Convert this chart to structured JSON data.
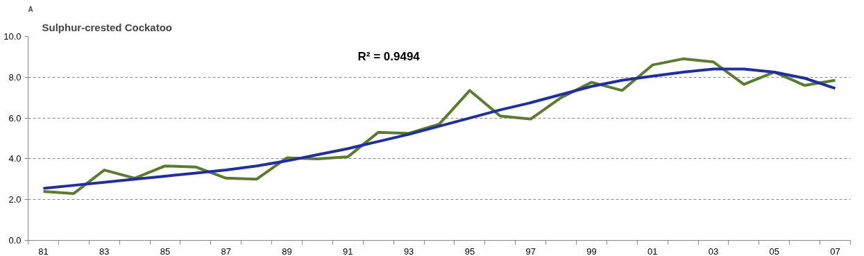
{
  "chart_data": {
    "type": "line",
    "title": "Sulphur-crested Cockatoo",
    "annotations": [
      "A",
      "R² = 0.9494"
    ],
    "categories": [
      "81",
      null,
      "83",
      null,
      "85",
      null,
      "87",
      null,
      "89",
      null,
      "91",
      null,
      "93",
      null,
      "95",
      null,
      "97",
      null,
      "99",
      null,
      "01",
      null,
      "03",
      null,
      "05",
      null,
      "07"
    ],
    "series": [
      {
        "color": "#5b7b2f",
        "values": [
          2.4,
          2.3,
          3.45,
          3.05,
          3.65,
          3.6,
          3.05,
          3.0,
          4.05,
          4.0,
          4.1,
          5.3,
          5.25,
          5.7,
          7.35,
          6.1,
          5.95,
          7.0,
          7.75,
          7.35,
          8.6,
          8.9,
          8.75,
          7.65,
          8.25,
          7.6,
          7.85
        ]
      },
      {
        "color": "#1f2ea0",
        "values": [
          2.55,
          2.7,
          2.85,
          3.0,
          3.15,
          3.3,
          3.45,
          3.65,
          3.9,
          4.2,
          4.5,
          4.85,
          5.2,
          5.6,
          6.0,
          6.4,
          6.75,
          7.15,
          7.55,
          7.85,
          8.05,
          8.25,
          8.4,
          8.4,
          8.25,
          7.95,
          7.45
        ]
      }
    ],
    "ylim": [
      0,
      10
    ],
    "yticks": [
      {
        "value": 0,
        "label": "0.0"
      },
      {
        "value": 2,
        "label": "2.0"
      },
      {
        "value": 4,
        "label": "4.0"
      },
      {
        "value": 6,
        "label": "6.0"
      },
      {
        "value": 8,
        "label": "8.0"
      },
      {
        "value": 10,
        "label": "10.0"
      }
    ],
    "grid": "y",
    "marker": "none",
    "line_style": "solid"
  }
}
